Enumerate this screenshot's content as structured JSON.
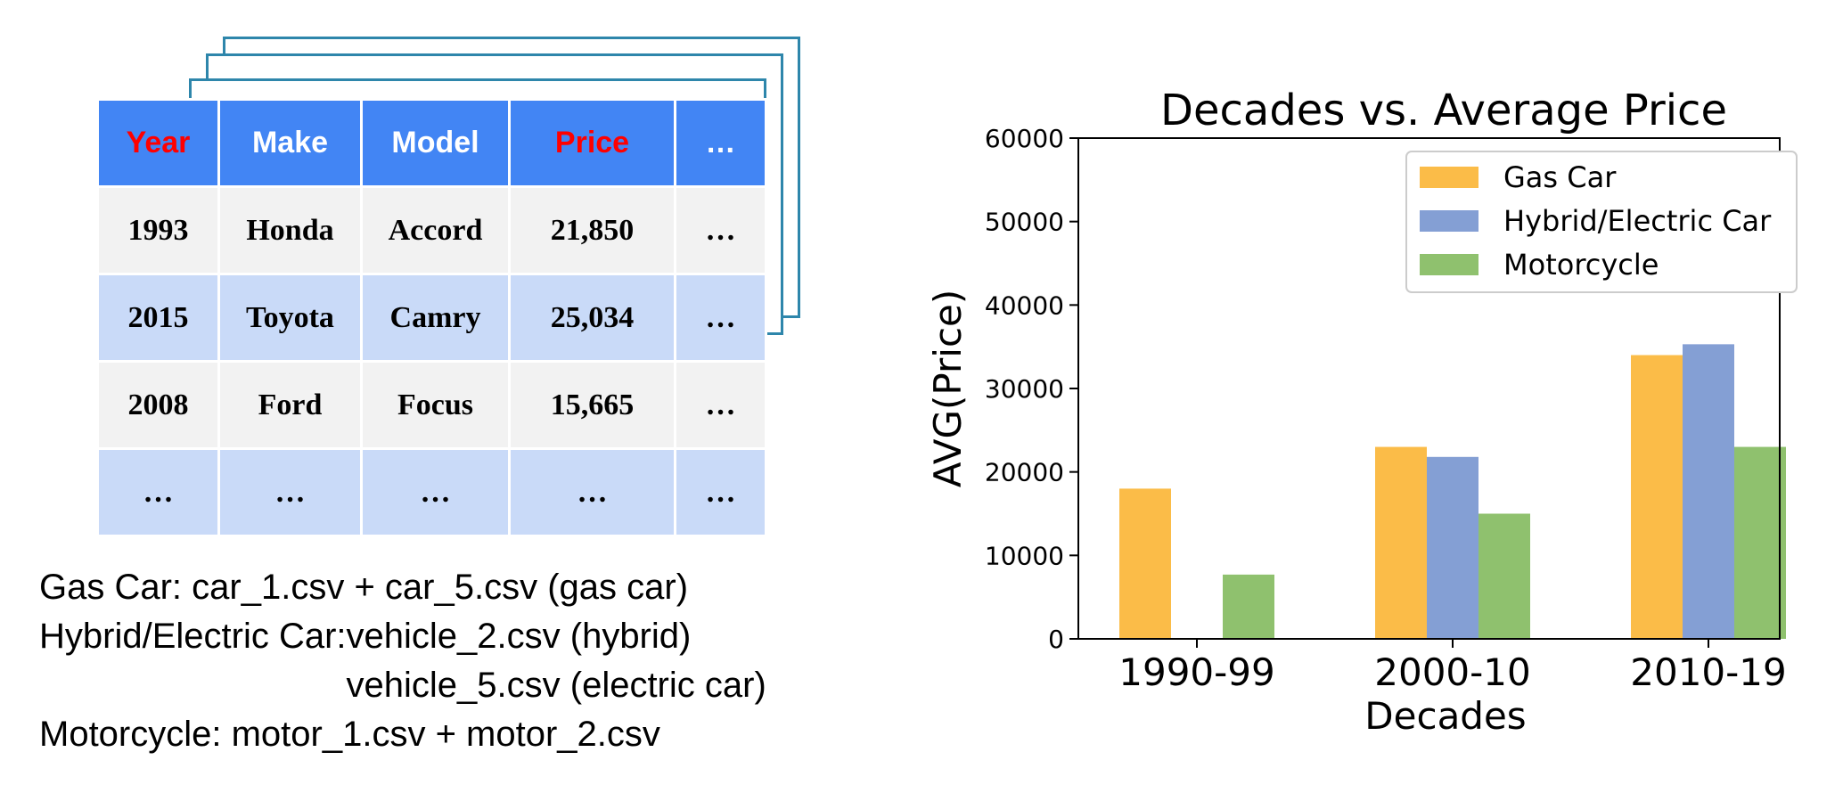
{
  "table": {
    "headers": [
      {
        "label": "Year",
        "highlight": true
      },
      {
        "label": "Make",
        "highlight": false
      },
      {
        "label": "Model",
        "highlight": false
      },
      {
        "label": "Price",
        "highlight": true
      },
      {
        "label": "…",
        "highlight": false
      }
    ],
    "rows": [
      [
        "1993",
        "Honda",
        "Accord",
        "21,850",
        "…"
      ],
      [
        "2015",
        "Toyota",
        "Camry",
        "25,034",
        "…"
      ],
      [
        "2008",
        "Ford",
        "Focus",
        "15,665",
        "…"
      ],
      [
        "…",
        "…",
        "…",
        "…",
        "…"
      ]
    ],
    "colors": {
      "header_bg": "#4285f4",
      "key_header_text": "#ff0000",
      "row_light": "#f2f2f2",
      "row_blue": "#c9daf8",
      "stack_border": "#2e86ab"
    }
  },
  "notes": {
    "gas": "Gas Car: car_1.csv + car_5.csv (gas car)",
    "hybrid_prefix": "Hybrid/Electric Car: ",
    "hybrid_line1": "vehicle_2.csv (hybrid)",
    "hybrid_line2": "vehicle_5.csv (electric car)",
    "motorcycle": "Motorcycle: motor_1.csv + motor_2.csv"
  },
  "chart_data": {
    "type": "bar",
    "title": "Decades vs. Average Price",
    "xlabel": "Decades",
    "ylabel": "AVG(Price)",
    "categories": [
      "1990-99",
      "2000-10",
      "2010-19"
    ],
    "ylim": [
      0,
      60000
    ],
    "yticks": [
      0,
      10000,
      20000,
      30000,
      40000,
      50000,
      60000
    ],
    "grid": false,
    "legend_position": "top-right",
    "series": [
      {
        "name": "Gas Car",
        "color": "#fbbc48",
        "values": [
          18000,
          23000,
          34000
        ]
      },
      {
        "name": "Hybrid/Electric Car",
        "color": "#849fd4",
        "values": [
          null,
          21800,
          35300
        ]
      },
      {
        "name": "Motorcycle",
        "color": "#8fc16e",
        "values": [
          7700,
          15000,
          23000
        ]
      }
    ]
  }
}
